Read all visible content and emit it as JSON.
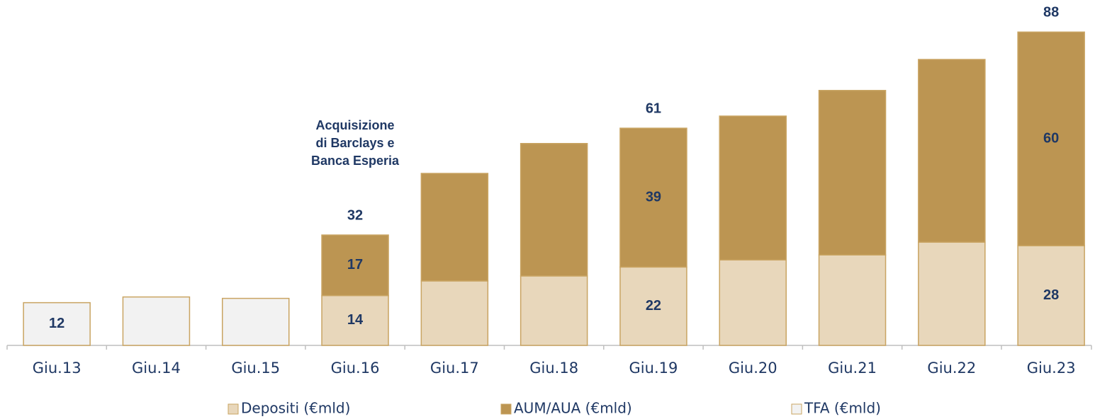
{
  "chart_data": {
    "type": "stacked-bar",
    "categories": [
      "Giu.13",
      "Giu.14",
      "Giu.15",
      "Giu.16",
      "Giu.17",
      "Giu.18",
      "Giu.19",
      "Giu.20",
      "Giu.21",
      "Giu.22",
      "Giu.23"
    ],
    "series": [
      {
        "name": "Depositi (€mld)",
        "color": "#e8d7bb",
        "values": [
          null,
          null,
          null,
          14,
          18.1,
          19.5,
          22,
          24,
          25.4,
          29,
          28
        ],
        "value_labels": [
          null,
          null,
          null,
          "14",
          null,
          null,
          "22",
          null,
          null,
          null,
          "28"
        ]
      },
      {
        "name": "AUM/AUA (€mld)",
        "color": "#bc9552",
        "values": [
          null,
          null,
          null,
          17,
          30.2,
          37.2,
          39,
          40.4,
          46.2,
          51.3,
          60
        ],
        "value_labels": [
          null,
          null,
          null,
          "17",
          null,
          null,
          "39",
          null,
          null,
          null,
          "60"
        ]
      },
      {
        "name": "TFA (€mld)",
        "color": "#f2f2f2",
        "values": [
          12,
          13.6,
          13.2,
          null,
          null,
          null,
          null,
          null,
          null,
          null,
          null
        ],
        "value_labels": [
          "12",
          null,
          null,
          null,
          null,
          null,
          null,
          null,
          null,
          null,
          null
        ]
      }
    ],
    "totals": [
      null,
      null,
      null,
      32,
      null,
      null,
      61,
      null,
      null,
      null,
      88
    ],
    "annotation": {
      "category": "Giu.16",
      "lines": [
        "Acquisizione",
        "di Barclays e",
        "Banca Esperia"
      ]
    },
    "ylim": [
      0,
      97
    ]
  }
}
